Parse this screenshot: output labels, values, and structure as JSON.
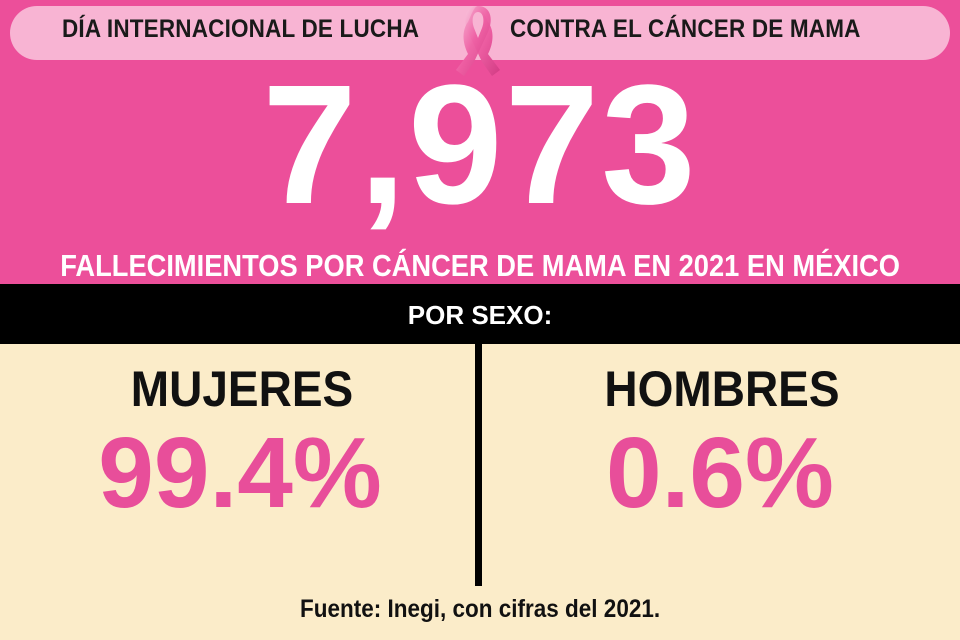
{
  "header": {
    "title_left": "DÍA INTERNACIONAL DE LUCHA",
    "title_right": "CONTRA EL CÁNCER DE MAMA",
    "icon": "pink-ribbon-icon"
  },
  "headline": {
    "number": "7,973",
    "subtitle": "FALLECIMIENTOS POR CÁNCER DE MAMA EN 2021 EN MÉXICO"
  },
  "breakdown": {
    "label": "POR SEXO:",
    "women": {
      "label": "MUJERES",
      "value": "99.4%"
    },
    "men": {
      "label": "HOMBRES",
      "value": "0.6%"
    }
  },
  "footer": {
    "source": "Fuente: Inegi, con cifras del 2021."
  },
  "colors": {
    "pink": "#ec4f9a",
    "light_pink": "#f8b4d3",
    "cream": "#fbecc9",
    "value_pink": "#e84e9a",
    "black": "#000000"
  }
}
